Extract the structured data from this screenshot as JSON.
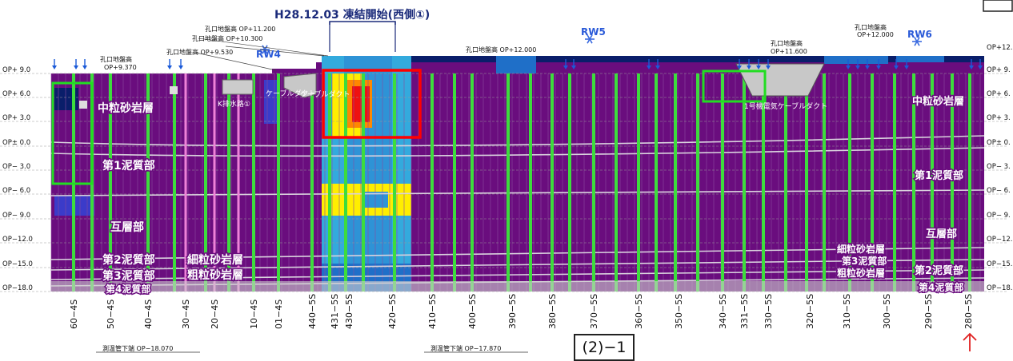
{
  "title": "H28.12.03 凍結開始(西側①)",
  "figure_no": "(2)−1",
  "levels": [
    "OP+ 9.0",
    "OP+ 6.0",
    "OP+ 3.0",
    "OP± 0.0",
    "OP− 3.0",
    "OP− 6.0",
    "OP− 9.0",
    "OP−12.0",
    "OP−15.0",
    "OP−18.0"
  ],
  "right_levels": [
    "OP+12.",
    "OP+ 9.",
    "OP+ 6.",
    "OP+ 3.",
    "OP± 0.",
    "OP− 3.",
    "OP− 6.",
    "OP− 9.",
    "OP−12.",
    "OP−15.",
    "OP−18."
  ],
  "pipe_labels": [
    "60−4S",
    "50−4S",
    "40−4S",
    "30−4S",
    "20−4S",
    "10−4S",
    "01−4S",
    "440−5S",
    "431−5S",
    "430−5S",
    "420−5S",
    "410−5S",
    "400−5S",
    "390−5S",
    "380−5S",
    "370−5S",
    "360−5S",
    "350−5S",
    "340−5S",
    "331−5S",
    "330−5S",
    "320−5S",
    "310−5S",
    "300−5S",
    "290−5S",
    "280−5S"
  ],
  "rw_labels": [
    "RW4",
    "RW5",
    "RW6"
  ],
  "ground_labels": [
    {
      "line1": "孔口地盤高",
      "line2": "OP+9.370"
    },
    {
      "line1": "孔口地盤高 OP+9.530",
      "line2": ""
    },
    {
      "line1": "孔口地盤高 OP+10.300",
      "line2": ""
    },
    {
      "line1": "孔口地盤高 OP+11.200",
      "line2": ""
    },
    {
      "line1": "孔口地盤高 OP+12.000",
      "line2": ""
    },
    {
      "line1": "孔口地盤高",
      "line2": "OP+11.600"
    },
    {
      "line1": "孔口地盤高",
      "line2": "OP+12.000"
    }
  ],
  "layers_left": [
    "中粒砂岩層",
    "第1泥質部",
    "互層部",
    "第2泥質部",
    "細粒砂岩層",
    "第3泥質部",
    "粗粒砂岩層",
    "第4泥質部"
  ],
  "layers_right": [
    "中粒砂岩層",
    "第1泥質部",
    "互層部",
    "細粒砂岩層",
    "第3泥質部",
    "粗粒砂岩層",
    "第2泥質部",
    "第4泥質部"
  ],
  "structures": [
    "K排水路①",
    "ケーブルダクト",
    "ケーブルダクト",
    "1号機電気ケーブルダクト"
  ],
  "notes": [
    "測温管下端 OP−18.070",
    "測温管下端 OP−17.870"
  ],
  "colors": {
    "purple": "#6a0d7e",
    "green": "#3ddc3d",
    "pink": "#ee82d8",
    "light_blue": "#33aadd",
    "blue": "#1f6fc8",
    "yellow": "#ffee00",
    "red": "#ee1111",
    "navy": "#0a1e6a",
    "box_red": "#ff0000",
    "box_green": "#22dd22"
  }
}
